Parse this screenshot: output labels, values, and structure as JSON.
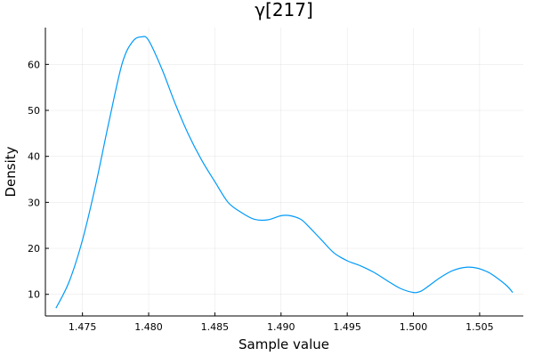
{
  "chart_data": {
    "type": "line",
    "title": "γ[217]",
    "xlabel": "Sample value",
    "ylabel": "Density",
    "xlim": [
      1.4722,
      1.5083
    ],
    "ylim": [
      5.3,
      68.0
    ],
    "xticks": [
      1.475,
      1.48,
      1.485,
      1.49,
      1.495,
      1.5,
      1.505
    ],
    "xtick_labels": [
      "1.475",
      "1.480",
      "1.485",
      "1.490",
      "1.495",
      "1.500",
      "1.505"
    ],
    "yticks": [
      10,
      20,
      30,
      40,
      50,
      60
    ],
    "ytick_labels": [
      "10",
      "20",
      "30",
      "40",
      "50",
      "60"
    ],
    "grid": true,
    "legend": "none",
    "series": [
      {
        "color": "#009af9",
        "x": [
          1.473,
          1.474,
          1.475,
          1.476,
          1.477,
          1.478,
          1.4788,
          1.4795,
          1.48,
          1.481,
          1.482,
          1.483,
          1.484,
          1.485,
          1.486,
          1.487,
          1.488,
          1.489,
          1.49,
          1.4907,
          1.4915,
          1.492,
          1.493,
          1.494,
          1.495,
          1.496,
          1.497,
          1.498,
          1.499,
          1.5,
          1.5005,
          1.501,
          1.502,
          1.503,
          1.504,
          1.5048,
          1.5055,
          1.506,
          1.507,
          1.5075
        ],
        "y": [
          7.0,
          12.8,
          21.8,
          33.8,
          47.5,
          60.2,
          65.0,
          66.0,
          65.2,
          59.0,
          51.5,
          44.8,
          39.2,
          34.5,
          30.0,
          27.8,
          26.3,
          26.2,
          27.1,
          27.1,
          26.3,
          25.0,
          22.0,
          19.0,
          17.3,
          16.2,
          14.8,
          13.0,
          11.3,
          10.4,
          10.6,
          11.5,
          13.6,
          15.2,
          15.9,
          15.7,
          15.0,
          14.2,
          12.0,
          10.4
        ]
      }
    ]
  }
}
